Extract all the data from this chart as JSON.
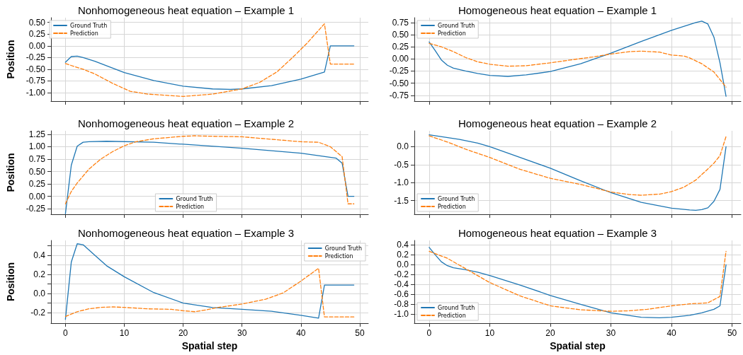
{
  "chart_data": [
    {
      "type": "line",
      "title": "Nonhomogeneous heat equation – Example 1",
      "ylabel": "Position",
      "xlim": [
        -2.45,
        51.45
      ],
      "xticks": [
        0,
        10,
        20,
        30,
        40,
        50
      ],
      "ylim": [
        -1.18,
        0.6
      ],
      "yticks": [
        {
          "value": -1,
          "label": "-1.00"
        },
        {
          "value": -0.75,
          "label": "-0.75"
        },
        {
          "value": -0.5,
          "label": "-0.50"
        },
        {
          "value": -0.25,
          "label": "-0.25"
        },
        {
          "value": 0,
          "label": "0.00"
        },
        {
          "value": 0.25,
          "label": "0.25"
        },
        {
          "value": 0.5,
          "label": "0.50"
        }
      ],
      "tick_labels": "y",
      "grid": true,
      "legend": "top left",
      "marker": "none",
      "series": [
        {
          "name": "Ground Truth",
          "color": "#1f77b4",
          "line_style": "solid",
          "x": [
            0,
            1,
            2,
            3,
            5,
            10,
            15,
            20,
            25,
            28,
            30,
            35,
            40,
            44,
            45,
            49
          ],
          "values": [
            -0.35,
            -0.23,
            -0.22,
            -0.25,
            -0.33,
            -0.57,
            -0.74,
            -0.86,
            -0.92,
            -0.93,
            -0.92,
            -0.85,
            -0.71,
            -0.56,
            0,
            0
          ]
        },
        {
          "name": "Prediction",
          "color": "#ff7f0e",
          "line_style": "dashed",
          "x": [
            0,
            3,
            5,
            8,
            11,
            14,
            20,
            25,
            30,
            33,
            36,
            39,
            41,
            44,
            45,
            49
          ],
          "values": [
            -0.38,
            -0.5,
            -0.6,
            -0.8,
            -0.97,
            -1.03,
            -1.08,
            -1.03,
            -0.92,
            -0.78,
            -0.55,
            -0.2,
            0.05,
            0.47,
            -0.39,
            -0.39
          ]
        }
      ]
    },
    {
      "type": "line",
      "title": "Homogeneous heat equation – Example 1",
      "xlim": [
        -2.45,
        51.45
      ],
      "xticks": [
        0,
        10,
        20,
        30,
        40,
        50
      ],
      "ylim": [
        -0.87,
        0.85
      ],
      "yticks": [
        {
          "value": -0.75,
          "label": "-0.75"
        },
        {
          "value": -0.5,
          "label": "-0.50"
        },
        {
          "value": -0.25,
          "label": "-0.25"
        },
        {
          "value": 0,
          "label": "0.00"
        },
        {
          "value": 0.25,
          "label": "0.25"
        },
        {
          "value": 0.5,
          "label": "0.50"
        },
        {
          "value": 0.75,
          "label": "0.75"
        }
      ],
      "tick_labels": "y",
      "grid": true,
      "legend": "top left",
      "marker": "none",
      "series": [
        {
          "name": "Ground Truth",
          "color": "#1f77b4",
          "line_style": "solid",
          "x": [
            0,
            1,
            2,
            3,
            4,
            6,
            8,
            10,
            13,
            16,
            20,
            25,
            30,
            35,
            40,
            44,
            45,
            46,
            47,
            48,
            49
          ],
          "values": [
            0.35,
            0.17,
            -0.02,
            -0.13,
            -0.19,
            -0.25,
            -0.3,
            -0.34,
            -0.36,
            -0.33,
            -0.26,
            -0.1,
            0.12,
            0.36,
            0.59,
            0.75,
            0.78,
            0.72,
            0.45,
            -0.08,
            -0.77
          ]
        },
        {
          "name": "Prediction",
          "color": "#ff7f0e",
          "line_style": "dashed",
          "x": [
            0,
            2,
            4,
            6,
            8,
            10,
            13,
            16,
            20,
            24,
            27,
            30,
            33,
            35,
            38,
            40,
            42,
            43,
            45,
            47,
            49
          ],
          "values": [
            0.32,
            0.25,
            0.15,
            0.03,
            -0.06,
            -0.11,
            -0.15,
            -0.14,
            -0.08,
            -0.01,
            0.04,
            0.1,
            0.15,
            0.16,
            0.14,
            0.08,
            0.06,
            0.02,
            -0.1,
            -0.27,
            -0.58
          ]
        }
      ]
    },
    {
      "type": "line",
      "title": "Nonhomogeneous heat equation – Example 2",
      "ylabel": "Position",
      "xlim": [
        -2.45,
        51.45
      ],
      "xticks": [
        0,
        10,
        20,
        30,
        40,
        50
      ],
      "ylim": [
        -0.36,
        1.32
      ],
      "yticks": [
        {
          "value": -0.25,
          "label": "-0.25"
        },
        {
          "value": 0,
          "label": "0.00"
        },
        {
          "value": 0.25,
          "label": "0.25"
        },
        {
          "value": 0.5,
          "label": "0.50"
        },
        {
          "value": 0.75,
          "label": "0.75"
        },
        {
          "value": 1,
          "label": "1.00"
        },
        {
          "value": 1.25,
          "label": "1.25"
        }
      ],
      "tick_labels": "y",
      "grid": true,
      "legend": "bottom",
      "marker": "none",
      "series": [
        {
          "name": "Ground Truth",
          "color": "#1f77b4",
          "line_style": "solid",
          "x": [
            0,
            1,
            2,
            3,
            4,
            7,
            15,
            20,
            30,
            40,
            46,
            47,
            48,
            49
          ],
          "values": [
            -0.35,
            0.63,
            1.01,
            1.09,
            1.1,
            1.11,
            1.09,
            1.05,
            0.97,
            0.87,
            0.77,
            0.67,
            0,
            0
          ]
        },
        {
          "name": "Prediction",
          "color": "#ff7f0e",
          "line_style": "dashed",
          "x": [
            0,
            1,
            2,
            4,
            6,
            8,
            10,
            12,
            15,
            20,
            22,
            25,
            30,
            35,
            40,
            43,
            45,
            47,
            48,
            49
          ],
          "values": [
            -0.15,
            0.1,
            0.27,
            0.55,
            0.75,
            0.9,
            1.02,
            1.1,
            1.16,
            1.21,
            1.22,
            1.21,
            1.2,
            1.15,
            1.1,
            1.09,
            1,
            0.8,
            -0.15,
            -0.15
          ]
        }
      ]
    },
    {
      "type": "line",
      "title": "Homogeneous heat equation – Example 2",
      "xlim": [
        -2.45,
        51.45
      ],
      "xticks": [
        0,
        10,
        20,
        30,
        40,
        50
      ],
      "ylim": [
        -1.88,
        0.44
      ],
      "yticks": [
        {
          "value": -1.5,
          "label": "-1.5"
        },
        {
          "value": -1,
          "label": "-1.0"
        },
        {
          "value": -0.5,
          "label": "-0.5"
        },
        {
          "value": 0,
          "label": "0.0"
        }
      ],
      "tick_labels": "y",
      "grid": true,
      "legend": "bottom left",
      "marker": "none",
      "series": [
        {
          "name": "Ground Truth",
          "color": "#1f77b4",
          "line_style": "solid",
          "x": [
            0,
            5,
            8,
            10,
            15,
            20,
            25,
            30,
            35,
            40,
            43,
            44,
            45,
            46,
            47,
            48,
            49
          ],
          "values": [
            0.33,
            0.2,
            0.1,
            0,
            -0.3,
            -0.6,
            -0.95,
            -1.28,
            -1.55,
            -1.71,
            -1.76,
            -1.77,
            -1.75,
            -1.7,
            -1.52,
            -1.19,
            0
          ]
        },
        {
          "name": "Prediction",
          "color": "#ff7f0e",
          "line_style": "dashed",
          "x": [
            0,
            3,
            6,
            10,
            15,
            20,
            25,
            30,
            33,
            35,
            38,
            40,
            42,
            44,
            46,
            47,
            48,
            49
          ],
          "values": [
            0.3,
            0.13,
            -0.07,
            -0.3,
            -0.63,
            -0.88,
            -1.05,
            -1.26,
            -1.33,
            -1.35,
            -1.32,
            -1.25,
            -1.13,
            -0.93,
            -0.62,
            -0.46,
            -0.25,
            0.28
          ]
        }
      ]
    },
    {
      "type": "line",
      "title": "Nonhomogeneous heat equation – Example 3",
      "xlabel": "Spatial step",
      "ylabel": "Position",
      "xlim": [
        -2.45,
        51.45
      ],
      "xticks": [
        0,
        10,
        20,
        30,
        40,
        50
      ],
      "ylim": [
        -0.31,
        0.555
      ],
      "yticks": [
        {
          "value": -0.2,
          "label": "-0.2"
        },
        {
          "value": -0.1,
          "label": null
        },
        {
          "value": 0,
          "label": "0.0"
        },
        {
          "value": 0.1,
          "label": null
        },
        {
          "value": 0.2,
          "label": "0.2"
        },
        {
          "value": 0.3,
          "label": null
        },
        {
          "value": 0.4,
          "label": "0.4"
        },
        {
          "value": 0.5,
          "label": null
        }
      ],
      "grid": true,
      "legend": "top right",
      "marker": "none",
      "series": [
        {
          "name": "Ground Truth",
          "color": "#1f77b4",
          "line_style": "solid",
          "x": [
            0,
            1,
            2,
            3,
            5,
            7,
            10,
            15,
            20,
            25,
            30,
            35,
            40,
            43,
            44,
            49
          ],
          "values": [
            -0.27,
            0.33,
            0.52,
            0.51,
            0.4,
            0.29,
            0.175,
            0.01,
            -0.1,
            -0.146,
            -0.165,
            -0.185,
            -0.227,
            -0.257,
            0.089,
            0.089
          ]
        },
        {
          "name": "Prediction",
          "color": "#ff7f0e",
          "line_style": "dashed",
          "x": [
            0,
            2,
            4,
            6,
            8,
            10,
            14,
            18,
            20,
            22,
            24,
            26,
            30,
            34,
            37,
            40,
            43,
            44,
            49
          ],
          "values": [
            -0.24,
            -0.19,
            -0.16,
            -0.145,
            -0.14,
            -0.145,
            -0.16,
            -0.165,
            -0.18,
            -0.19,
            -0.17,
            -0.145,
            -0.11,
            -0.06,
            0.007,
            0.13,
            0.264,
            -0.245,
            -0.245
          ]
        }
      ]
    },
    {
      "type": "line",
      "title": "Homogeneous heat equation – Example 3",
      "xlabel": "Spatial step",
      "xlim": [
        -2.45,
        51.45
      ],
      "xticks": [
        0,
        10,
        20,
        30,
        40,
        50
      ],
      "ylim": [
        -1.18,
        0.49
      ],
      "yticks": [
        {
          "value": -1,
          "label": "-1.0"
        },
        {
          "value": -0.8,
          "label": "-0.8"
        },
        {
          "value": -0.6,
          "label": "-0.6"
        },
        {
          "value": -0.4,
          "label": "-0.4"
        },
        {
          "value": -0.2,
          "label": "-0.2"
        },
        {
          "value": 0,
          "label": "0.0"
        },
        {
          "value": 0.2,
          "label": "0.2"
        },
        {
          "value": 0.4,
          "label": "0.4"
        }
      ],
      "grid": true,
      "legend": "bottom left",
      "marker": "none",
      "series": [
        {
          "name": "Ground Truth",
          "color": "#1f77b4",
          "line_style": "solid",
          "x": [
            0,
            1,
            2,
            3,
            4,
            6,
            8,
            10,
            15,
            20,
            25,
            30,
            35,
            38,
            40,
            43,
            45,
            47,
            48,
            49
          ],
          "values": [
            0.35,
            0.2,
            0.06,
            -0.02,
            -0.06,
            -0.1,
            -0.15,
            -0.22,
            -0.41,
            -0.62,
            -0.8,
            -0.97,
            -1.06,
            -1.07,
            -1.06,
            -1.02,
            -0.97,
            -0.9,
            -0.83,
            0
          ]
        },
        {
          "name": "Prediction",
          "color": "#ff7f0e",
          "line_style": "dashed",
          "x": [
            0,
            3,
            6,
            10,
            15,
            20,
            25,
            30,
            33,
            36,
            40,
            43,
            46,
            48,
            49
          ],
          "values": [
            0.27,
            0.13,
            -0.08,
            -0.36,
            -0.63,
            -0.83,
            -0.91,
            -0.94,
            -0.93,
            -0.9,
            -0.83,
            -0.79,
            -0.77,
            -0.64,
            0.27
          ]
        }
      ]
    }
  ]
}
